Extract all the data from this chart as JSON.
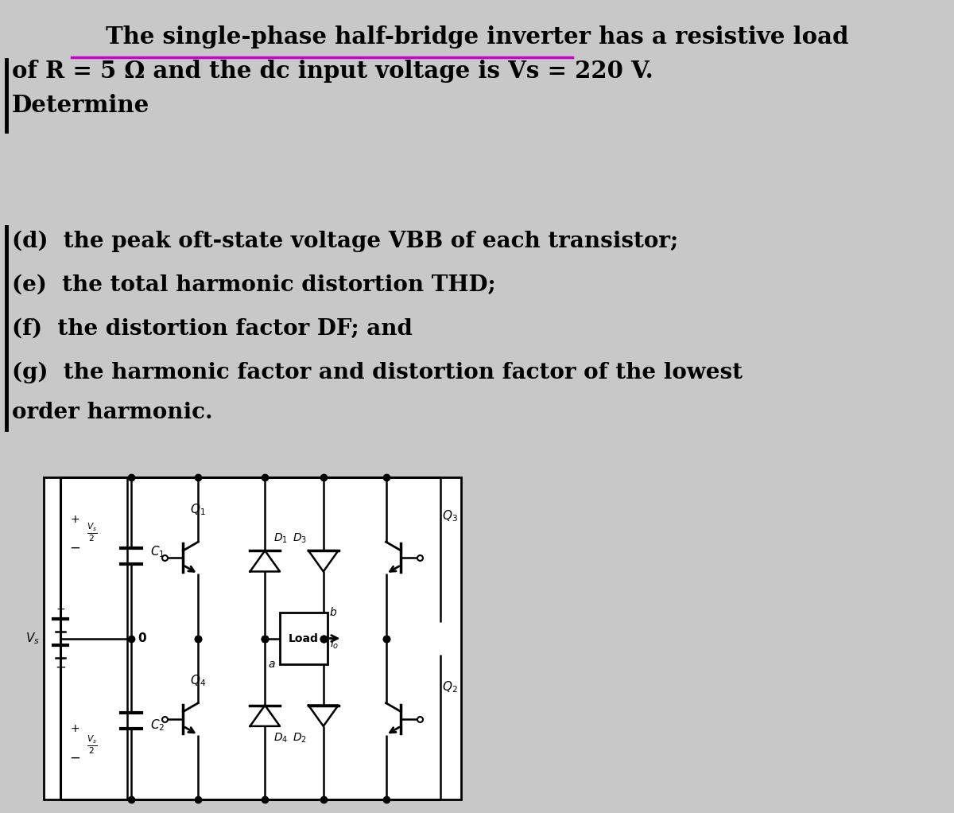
{
  "title_line1": "The single-phase half-bridge inverter has a resistive load",
  "title_line2": "of R = 5 Ω and the dc input voltage is Vs = 220 V.",
  "title_line3": "Determine",
  "underline_color": "#cc00cc",
  "items_d": "(d)  the peak oft-state voltage VBB of each transistor;",
  "items_e": "(e)  the total harmonic distortion THD;",
  "items_f": "(f)  the distortion factor DF; and",
  "items_g1": "(g)  the harmonic factor and distortion factor of the lowest",
  "items_g2": "order harmonic.",
  "bg_color": "#c8c8c8",
  "text_color": "#000000",
  "font_size_title": 21,
  "font_size_items": 20
}
